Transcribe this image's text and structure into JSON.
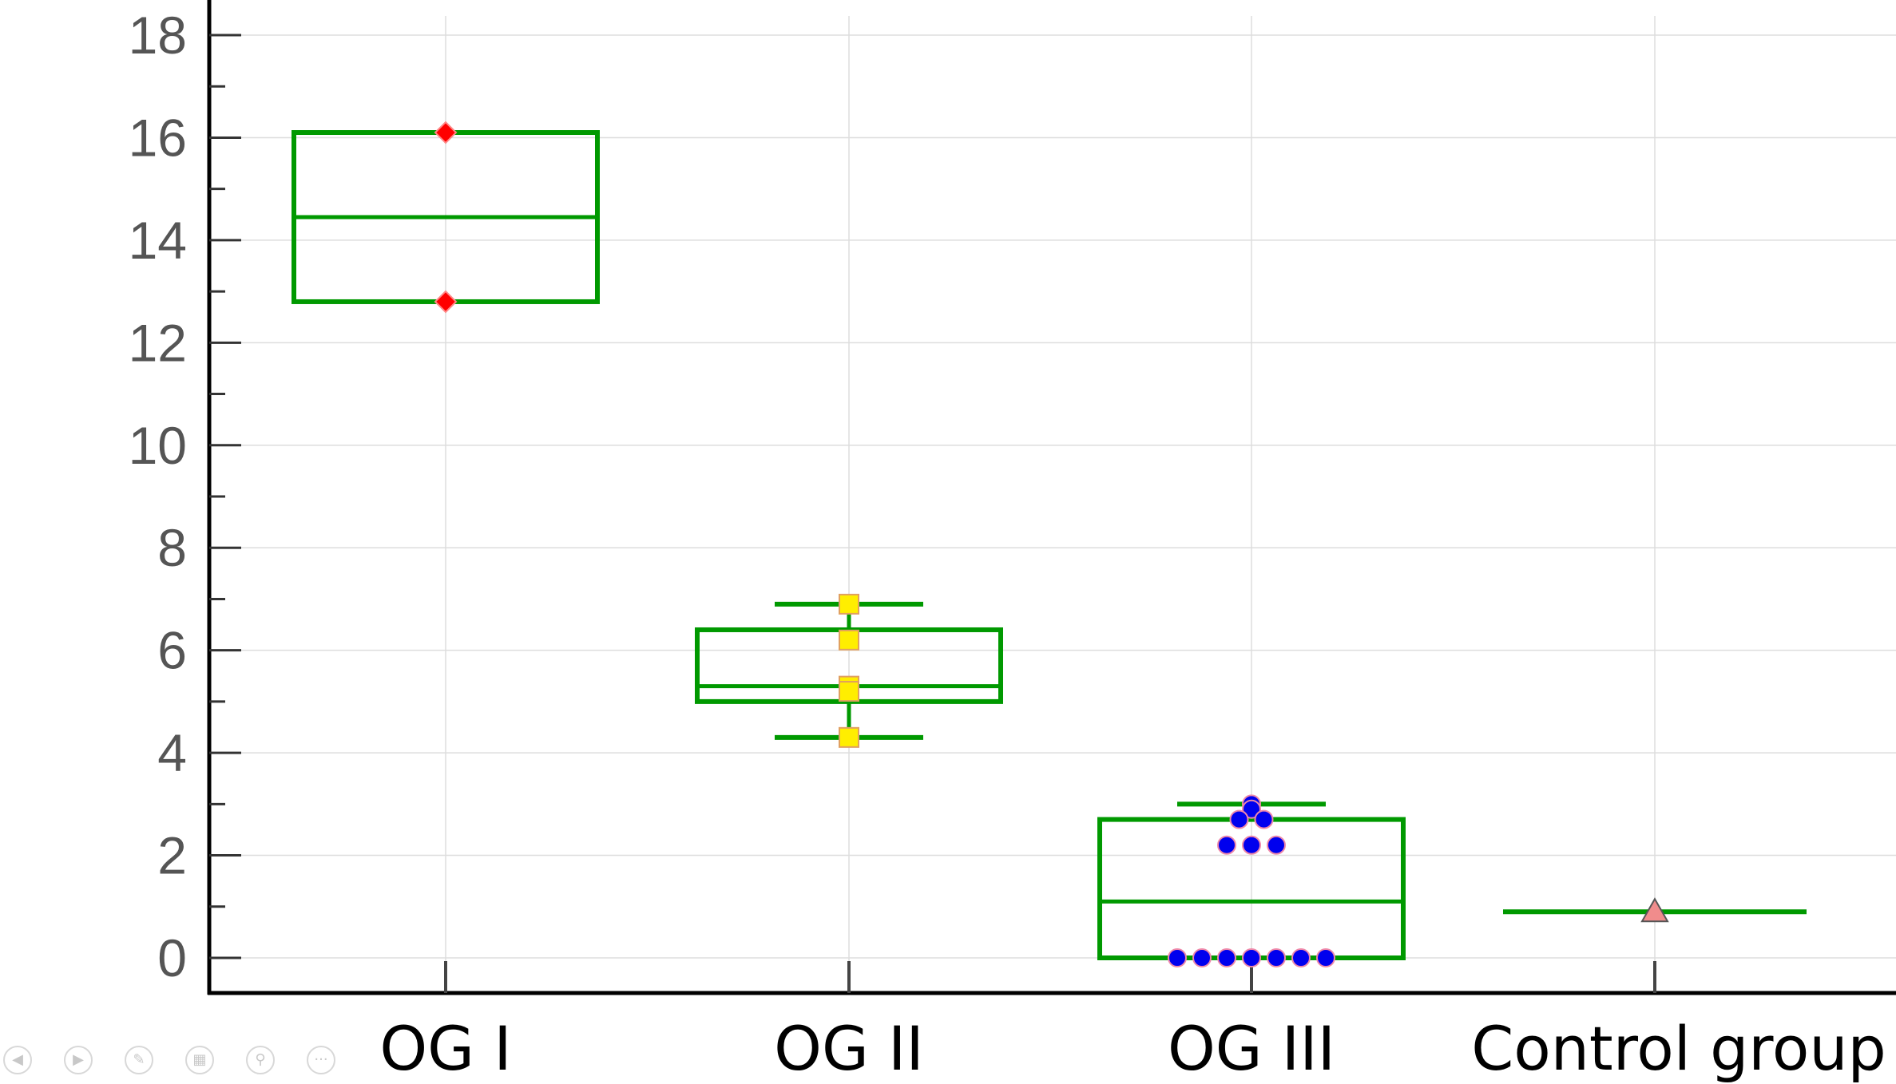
{
  "chart_data": {
    "type": "box",
    "categories": [
      "OG I",
      "OG II",
      "OG III",
      "Control group"
    ],
    "ylim": [
      0,
      18.5
    ],
    "y_ticks": [
      "0",
      "2",
      "4",
      "6",
      "8",
      "10",
      "12",
      "14",
      "16",
      "18"
    ],
    "grid": true,
    "box_color": "#009900",
    "groups": [
      {
        "category": "OG I",
        "q1": 12.8,
        "median": 14.45,
        "q3": 16.1,
        "whisker_low": 12.8,
        "whisker_high": 16.1,
        "points": [
          16.1,
          12.8
        ],
        "marker": "diamond",
        "marker_color": "#ff0000"
      },
      {
        "category": "OG II",
        "q1": 5.0,
        "median": 5.3,
        "q3": 6.4,
        "whisker_low": 4.3,
        "whisker_high": 6.9,
        "points": [
          6.9,
          6.2,
          5.3,
          5.2,
          4.3
        ],
        "marker": "square",
        "marker_color": "#ffee00"
      },
      {
        "category": "OG III",
        "q1": 0.0,
        "median": 1.1,
        "q3": 2.7,
        "whisker_low": 0.0,
        "whisker_high": 3.0,
        "points": [
          3.0,
          2.9,
          2.7,
          2.7,
          2.2,
          2.2,
          2.2,
          0,
          0,
          0,
          0,
          0,
          0,
          0
        ],
        "marker": "circle",
        "marker_color": "#0000ee"
      },
      {
        "category": "Control group",
        "median": 0.9,
        "points": [
          0.9
        ],
        "marker": "triangle",
        "marker_color": "#f08c8c"
      }
    ]
  },
  "nav_icons": [
    "previous-icon",
    "next-icon",
    "pen-icon",
    "slides-icon",
    "zoom-icon",
    "more-icon"
  ]
}
